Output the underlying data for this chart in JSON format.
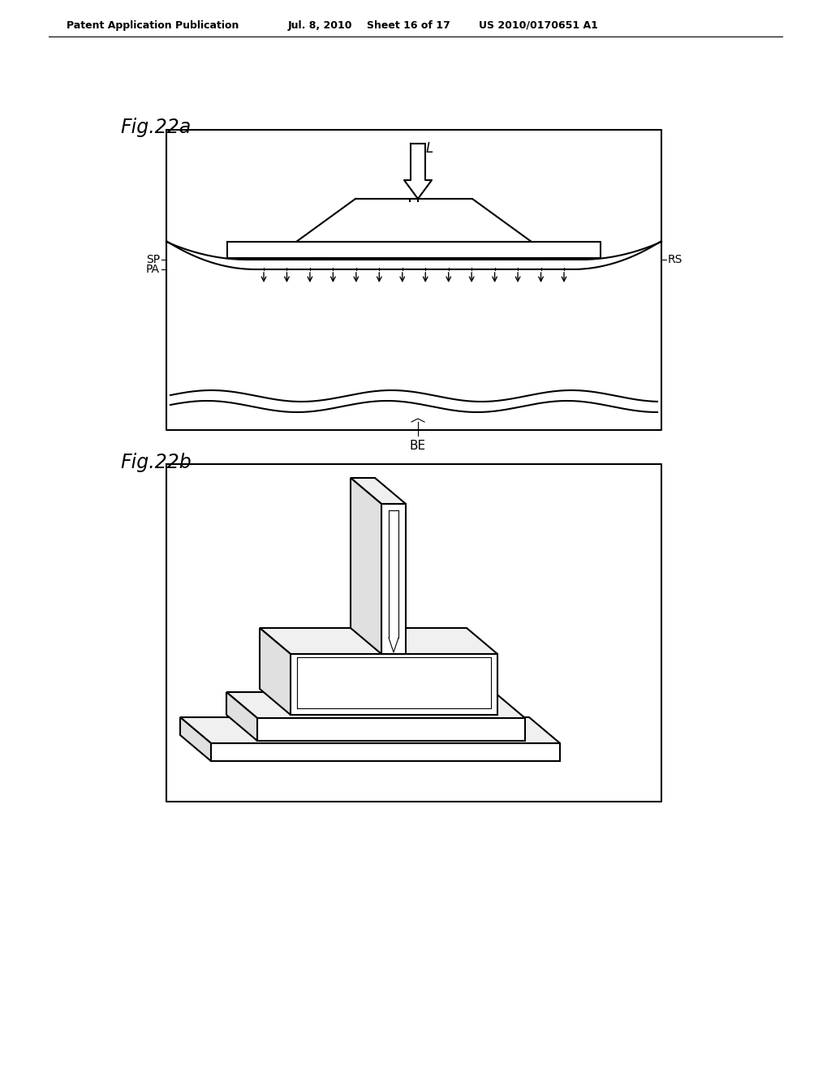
{
  "bg_color": "#ffffff",
  "header_text": "Patent Application Publication",
  "header_date": "Jul. 8, 2010",
  "header_sheet": "Sheet 16 of 17",
  "header_patent": "US 2010/0170651 A1",
  "fig22a_label": "Fig.22a",
  "fig22b_label": "Fig.22b",
  "label_L": "L",
  "label_SP": "SP",
  "label_PA": "PA",
  "label_RS": "RS",
  "label_BE": "BE",
  "line_color": "#000000",
  "line_width": 1.5,
  "thin_line": 0.8
}
